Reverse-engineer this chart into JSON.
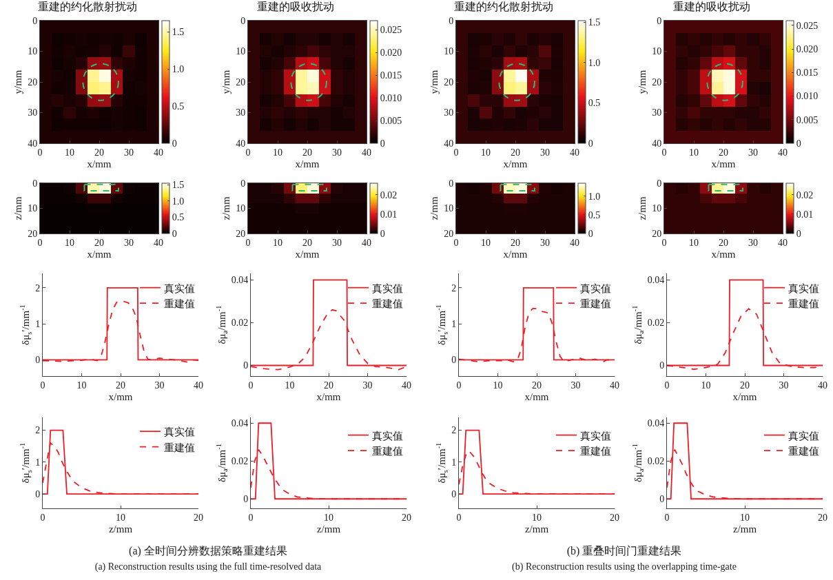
{
  "chart_data": [
    {
      "type": "heatmap",
      "title": "重建的约化散射扰动",
      "xlabel": "x/mm",
      "ylabel": "y/mm",
      "x": [
        2,
        6,
        10,
        14,
        18,
        22,
        26,
        30,
        34,
        38
      ],
      "y": [
        2,
        6,
        10,
        14,
        18,
        22,
        26,
        30,
        34,
        38
      ],
      "xlim": [
        0,
        40
      ],
      "ylim": [
        40,
        0
      ],
      "xticks": [
        0,
        10,
        20,
        30,
        40
      ],
      "yticks": [
        0,
        10,
        20,
        30,
        40
      ],
      "clim": [
        0,
        1.65
      ],
      "cticks": [
        0,
        0.5,
        {
          "value": 1,
          "label": "1.0"
        },
        1.5
      ],
      "cells": [
        [
          0.08,
          0.08,
          0.08,
          0.08,
          0.08,
          0.08,
          0.08,
          0.08,
          0.08,
          0.08
        ],
        [
          0.08,
          0.04,
          0.05,
          0.06,
          0.05,
          0.06,
          0.05,
          0.07,
          0.04,
          0.08
        ],
        [
          0.08,
          0.05,
          0.07,
          0.05,
          0.06,
          0.1,
          0.05,
          0.15,
          0.05,
          0.08
        ],
        [
          0.08,
          0.04,
          0.06,
          0.1,
          0.4,
          0.42,
          0.12,
          0.08,
          0.05,
          0.08
        ],
        [
          0.08,
          0.06,
          0.05,
          0.35,
          1.45,
          1.6,
          0.45,
          0.06,
          0.05,
          0.08
        ],
        [
          0.08,
          0.05,
          0.06,
          0.35,
          1.4,
          1.45,
          0.45,
          0.05,
          0.06,
          0.08
        ],
        [
          0.08,
          0.1,
          0.07,
          0.1,
          0.4,
          0.42,
          0.1,
          0.05,
          0.05,
          0.08
        ],
        [
          0.08,
          0.05,
          0.12,
          0.06,
          0.08,
          0.05,
          0.06,
          0.05,
          0.04,
          0.08
        ],
        [
          0.08,
          0.04,
          0.05,
          0.05,
          0.05,
          0.04,
          0.06,
          0.05,
          0.04,
          0.08
        ],
        [
          0.08,
          0.08,
          0.08,
          0.08,
          0.08,
          0.08,
          0.08,
          0.08,
          0.08,
          0.08
        ]
      ]
    },
    {
      "type": "heatmap",
      "title": "重建的吸收扰动",
      "xlabel": "x/mm",
      "ylabel": "y/mm",
      "x": [
        2,
        6,
        10,
        14,
        18,
        22,
        26,
        30,
        34,
        38
      ],
      "y": [
        2,
        6,
        10,
        14,
        18,
        22,
        26,
        30,
        34,
        38
      ],
      "xlim": [
        0,
        40
      ],
      "ylim": [
        40,
        0
      ],
      "xticks": [
        0,
        10,
        20,
        30,
        40
      ],
      "yticks": [
        0,
        10,
        20,
        30,
        40
      ],
      "clim": [
        0,
        0.027
      ],
      "cticks": [
        0,
        0.005,
        {
          "value": 0.01,
          "label": "0.010"
        },
        0.015,
        {
          "value": 0.02,
          "label": "0.020"
        },
        0.025
      ],
      "cells": [
        [
          0.002,
          0.002,
          0.002,
          0.002,
          0.002,
          0.002,
          0.002,
          0.002,
          0.002,
          0.002
        ],
        [
          0.002,
          0.001,
          0.0015,
          0.001,
          0.0015,
          0.0015,
          0.001,
          0.0015,
          0.001,
          0.002
        ],
        [
          0.002,
          0.0015,
          0.001,
          0.0015,
          0.002,
          0.003,
          0.002,
          0.0015,
          0.0015,
          0.002
        ],
        [
          0.002,
          0.001,
          0.0015,
          0.003,
          0.008,
          0.009,
          0.003,
          0.0015,
          0.001,
          0.002
        ],
        [
          0.002,
          0.0015,
          0.002,
          0.008,
          0.024,
          0.026,
          0.009,
          0.002,
          0.0015,
          0.002
        ],
        [
          0.002,
          0.0015,
          0.002,
          0.008,
          0.024,
          0.025,
          0.009,
          0.002,
          0.0015,
          0.002
        ],
        [
          0.002,
          0.001,
          0.0015,
          0.003,
          0.008,
          0.009,
          0.003,
          0.0015,
          0.001,
          0.002
        ],
        [
          0.002,
          0.0015,
          0.002,
          0.0015,
          0.002,
          0.0015,
          0.0015,
          0.001,
          0.0015,
          0.002
        ],
        [
          0.002,
          0.001,
          0.0015,
          0.001,
          0.0015,
          0.001,
          0.0015,
          0.001,
          0.001,
          0.002
        ],
        [
          0.002,
          0.002,
          0.002,
          0.002,
          0.002,
          0.002,
          0.002,
          0.002,
          0.002,
          0.002
        ]
      ]
    },
    {
      "type": "heatmap",
      "title": "重建的约化散射扰动",
      "xlabel": "x/mm",
      "ylabel": "y/mm",
      "x": [
        2,
        6,
        10,
        14,
        18,
        22,
        26,
        30,
        34,
        38
      ],
      "y": [
        2,
        6,
        10,
        14,
        18,
        22,
        26,
        30,
        34,
        38
      ],
      "xlim": [
        0,
        40
      ],
      "ylim": [
        40,
        0
      ],
      "xticks": [
        0,
        10,
        20,
        30,
        40
      ],
      "yticks": [
        0,
        10,
        20,
        30,
        40
      ],
      "clim": [
        0,
        1.52
      ],
      "cticks": [
        0,
        0.5,
        {
          "value": 1,
          "label": "1.0"
        },
        1.5
      ],
      "cells": [
        [
          0.12,
          0.12,
          0.12,
          0.12,
          0.12,
          0.12,
          0.12,
          0.12,
          0.12,
          0.12
        ],
        [
          0.12,
          0.06,
          0.07,
          0.1,
          0.08,
          0.12,
          0.07,
          0.09,
          0.06,
          0.12
        ],
        [
          0.12,
          0.07,
          0.1,
          0.06,
          0.12,
          0.08,
          0.1,
          0.2,
          0.07,
          0.12
        ],
        [
          0.12,
          0.06,
          0.08,
          0.1,
          0.4,
          0.42,
          0.12,
          0.14,
          0.06,
          0.12
        ],
        [
          0.12,
          0.08,
          0.06,
          0.35,
          1.35,
          1.5,
          0.42,
          0.08,
          0.07,
          0.12
        ],
        [
          0.12,
          0.07,
          0.08,
          0.33,
          1.3,
          1.35,
          0.4,
          0.1,
          0.08,
          0.12
        ],
        [
          0.12,
          0.18,
          0.1,
          0.1,
          0.38,
          0.4,
          0.1,
          0.07,
          0.06,
          0.12
        ],
        [
          0.12,
          0.07,
          0.2,
          0.08,
          0.12,
          0.06,
          0.08,
          0.1,
          0.06,
          0.12
        ],
        [
          0.12,
          0.06,
          0.07,
          0.08,
          0.06,
          0.07,
          0.1,
          0.06,
          0.06,
          0.12
        ],
        [
          0.12,
          0.12,
          0.12,
          0.12,
          0.12,
          0.12,
          0.12,
          0.12,
          0.12,
          0.12
        ]
      ]
    },
    {
      "type": "heatmap",
      "title": "重建的吸收扰动",
      "xlabel": "x/mm",
      "ylabel": "y/mm",
      "x": [
        2,
        6,
        10,
        14,
        18,
        22,
        26,
        30,
        34,
        38
      ],
      "y": [
        2,
        6,
        10,
        14,
        18,
        22,
        26,
        30,
        34,
        38
      ],
      "xlim": [
        0,
        40
      ],
      "ylim": [
        40,
        0
      ],
      "xticks": [
        0,
        10,
        20,
        30,
        40
      ],
      "yticks": [
        0,
        10,
        20,
        30,
        40
      ],
      "clim": [
        0,
        0.026
      ],
      "cticks": [
        0,
        0.005,
        {
          "value": 0.01,
          "label": "0.010"
        },
        0.015,
        {
          "value": 0.02,
          "label": "0.020"
        },
        0.025
      ],
      "cells": [
        [
          0.003,
          0.003,
          0.003,
          0.003,
          0.003,
          0.003,
          0.003,
          0.003,
          0.003,
          0.003
        ],
        [
          0.003,
          0.0015,
          0.002,
          0.0015,
          0.002,
          0.0015,
          0.002,
          0.0015,
          0.002,
          0.003
        ],
        [
          0.003,
          0.002,
          0.0015,
          0.002,
          0.003,
          0.004,
          0.002,
          0.002,
          0.0015,
          0.003
        ],
        [
          0.003,
          0.0015,
          0.002,
          0.004,
          0.008,
          0.009,
          0.004,
          0.002,
          0.0015,
          0.003
        ],
        [
          0.003,
          0.002,
          0.003,
          0.008,
          0.024,
          0.025,
          0.009,
          0.002,
          0.002,
          0.003
        ],
        [
          0.003,
          0.002,
          0.003,
          0.008,
          0.023,
          0.025,
          0.009,
          0.0015,
          0.001,
          0.003
        ],
        [
          0.003,
          0.0015,
          0.002,
          0.004,
          0.008,
          0.009,
          0.004,
          0.002,
          0.0015,
          0.003
        ],
        [
          0.003,
          0.002,
          0.003,
          0.002,
          0.002,
          0.002,
          0.0015,
          0.0015,
          0.002,
          0.003
        ],
        [
          0.003,
          0.0015,
          0.002,
          0.0015,
          0.002,
          0.0015,
          0.002,
          0.0015,
          0.0015,
          0.003
        ],
        [
          0.003,
          0.003,
          0.003,
          0.003,
          0.003,
          0.003,
          0.003,
          0.003,
          0.003,
          0.003
        ]
      ]
    },
    {
      "type": "heatmap",
      "xlabel": "x/mm",
      "ylabel": "z/mm",
      "x": [
        2,
        6,
        10,
        14,
        18,
        22,
        26,
        30,
        34,
        38
      ],
      "y": [
        2,
        6,
        10,
        14,
        18
      ],
      "xlim": [
        0,
        40
      ],
      "ylim": [
        20,
        0
      ],
      "xticks": [
        0,
        10,
        20,
        30,
        40
      ],
      "yticks": [
        0,
        10,
        20
      ],
      "clim": [
        0,
        1.55
      ],
      "cticks": [
        0,
        0.5,
        {
          "value": 1,
          "label": "1.0"
        },
        1.5
      ],
      "cells": [
        [
          0.03,
          0.03,
          0.04,
          0.2,
          1.4,
          1.5,
          0.25,
          0.04,
          0.03,
          0.03
        ],
        [
          0.03,
          0.03,
          0.03,
          0.05,
          0.15,
          0.15,
          0.05,
          0.03,
          0.03,
          0.03
        ],
        [
          0.02,
          0.02,
          0.02,
          0.02,
          0.03,
          0.03,
          0.02,
          0.02,
          0.02,
          0.02
        ],
        [
          0.02,
          0.02,
          0.02,
          0.02,
          0.02,
          0.02,
          0.02,
          0.02,
          0.02,
          0.02
        ],
        [
          0.02,
          0.02,
          0.02,
          0.02,
          0.02,
          0.02,
          0.02,
          0.02,
          0.02,
          0.02
        ]
      ]
    },
    {
      "type": "heatmap",
      "xlabel": "x/mm",
      "ylabel": "z/mm",
      "x": [
        2,
        6,
        10,
        14,
        18,
        22,
        26,
        30,
        34,
        38
      ],
      "y": [
        2,
        6,
        10,
        14,
        18
      ],
      "xlim": [
        0,
        40
      ],
      "ylim": [
        20,
        0
      ],
      "xticks": [
        0,
        10,
        20,
        30,
        40
      ],
      "yticks": [
        0,
        10,
        20
      ],
      "clim": [
        0,
        0.026
      ],
      "cticks": [
        0,
        0.01,
        0.02
      ],
      "cells": [
        [
          0.001,
          0.001,
          0.0015,
          0.005,
          0.022,
          0.025,
          0.006,
          0.0015,
          0.001,
          0.001
        ],
        [
          0.001,
          0.001,
          0.001,
          0.002,
          0.004,
          0.004,
          0.002,
          0.001,
          0.001,
          0.001
        ],
        [
          0.0008,
          0.0008,
          0.0008,
          0.0008,
          0.001,
          0.001,
          0.0008,
          0.0008,
          0.0008,
          0.0008
        ],
        [
          0.0008,
          0.0008,
          0.0008,
          0.0008,
          0.0008,
          0.0008,
          0.0008,
          0.0008,
          0.0008,
          0.0008
        ],
        [
          0.0008,
          0.0008,
          0.0008,
          0.0008,
          0.0008,
          0.0008,
          0.0008,
          0.0008,
          0.0008,
          0.0008
        ]
      ]
    },
    {
      "type": "heatmap",
      "xlabel": "x/mm",
      "ylabel": "z/mm",
      "x": [
        2,
        6,
        10,
        14,
        18,
        22,
        26,
        30,
        34,
        38
      ],
      "y": [
        2,
        6,
        10,
        14,
        18
      ],
      "xlim": [
        0,
        40
      ],
      "ylim": [
        20,
        0
      ],
      "xticks": [
        0,
        10,
        20,
        30,
        40
      ],
      "yticks": [
        0,
        10,
        20
      ],
      "clim": [
        0,
        1.35
      ],
      "cticks": [
        0,
        0.5,
        {
          "value": 1,
          "label": "1.0"
        }
      ],
      "cells": [
        [
          0.06,
          0.05,
          0.07,
          0.25,
          1.25,
          1.3,
          0.3,
          0.07,
          0.05,
          0.06
        ],
        [
          0.06,
          0.06,
          0.06,
          0.08,
          0.2,
          0.2,
          0.08,
          0.06,
          0.06,
          0.06
        ],
        [
          0.06,
          0.06,
          0.06,
          0.06,
          0.07,
          0.07,
          0.06,
          0.06,
          0.06,
          0.06
        ],
        [
          0.06,
          0.06,
          0.06,
          0.06,
          0.06,
          0.06,
          0.06,
          0.06,
          0.06,
          0.06
        ],
        [
          0.06,
          0.06,
          0.06,
          0.06,
          0.06,
          0.06,
          0.06,
          0.06,
          0.06,
          0.06
        ]
      ]
    },
    {
      "type": "heatmap",
      "xlabel": "x/mm",
      "ylabel": "z/mm",
      "x": [
        2,
        6,
        10,
        14,
        18,
        22,
        26,
        30,
        34,
        38
      ],
      "y": [
        2,
        6,
        10,
        14,
        18
      ],
      "xlim": [
        0,
        40
      ],
      "ylim": [
        20,
        0
      ],
      "xticks": [
        0,
        10,
        20,
        30,
        40
      ],
      "yticks": [
        0,
        10,
        20
      ],
      "clim": [
        0,
        0.026
      ],
      "cticks": [
        0,
        0.01,
        0.02
      ],
      "cells": [
        [
          0.002,
          0.0015,
          0.002,
          0.006,
          0.023,
          0.025,
          0.006,
          0.002,
          0.0015,
          0.002
        ],
        [
          0.002,
          0.002,
          0.002,
          0.003,
          0.004,
          0.004,
          0.003,
          0.002,
          0.002,
          0.002
        ],
        [
          0.002,
          0.002,
          0.002,
          0.002,
          0.002,
          0.002,
          0.002,
          0.002,
          0.002,
          0.002
        ],
        [
          0.002,
          0.002,
          0.002,
          0.002,
          0.002,
          0.002,
          0.002,
          0.002,
          0.002,
          0.002
        ],
        [
          0.002,
          0.002,
          0.002,
          0.002,
          0.002,
          0.002,
          0.002,
          0.002,
          0.002,
          0.002
        ]
      ]
    },
    {
      "type": "line",
      "xlabel": "x/mm",
      "ylabel": "δμ$_{s}$′/mm$^{-1}$",
      "xlim": [
        0,
        40
      ],
      "ylim": [
        -0.45,
        2.4
      ],
      "xticks": [
        0,
        10,
        20,
        30,
        40
      ],
      "yticks": [
        0,
        1,
        2
      ],
      "legend": "top right",
      "series": [
        {
          "name": "真实值",
          "color": "#ee1c25",
          "line_style": "solid",
          "x": [
            0,
            16.5,
            16.6,
            24.4,
            24.5,
            40
          ],
          "values": [
            0,
            0,
            2,
            2,
            0,
            0
          ]
        },
        {
          "name": "重建值",
          "color": "#ee1c25",
          "line_style": "dashed",
          "x": [
            0,
            5,
            10,
            12,
            14,
            15,
            16,
            17,
            18,
            19,
            20,
            21,
            22,
            23,
            24,
            25,
            26,
            27,
            28,
            30,
            32,
            35,
            37,
            38,
            40
          ],
          "values": [
            -0.02,
            -0.04,
            -0.01,
            0.02,
            -0.02,
            0.1,
            0.5,
            1,
            1.4,
            1.6,
            1.63,
            1.62,
            1.58,
            1.45,
            1.2,
            0.7,
            0.25,
            0.02,
            0,
            0.05,
            0.02,
            -0.01,
            -0.06,
            0,
            -0.01
          ]
        }
      ]
    },
    {
      "type": "line",
      "xlabel": "x/mm",
      "ylabel": "δμ$_{a}$/mm$^{-1}$",
      "xlim": [
        0,
        40
      ],
      "ylim": [
        -0.005,
        0.043
      ],
      "xticks": [
        0,
        10,
        20,
        30,
        40
      ],
      "yticks": [
        0,
        0.02,
        0.04
      ],
      "legend": "top right",
      "series": [
        {
          "name": "真实值",
          "color": "#ee1c25",
          "line_style": "solid",
          "x": [
            0,
            16,
            16.1,
            24.7,
            24.8,
            40
          ],
          "values": [
            0,
            0,
            0.04,
            0.04,
            0,
            0
          ]
        },
        {
          "name": "重建值",
          "color": "#ee1c25",
          "line_style": "dashed",
          "x": [
            0,
            3,
            7,
            10,
            12,
            14,
            16,
            18,
            20,
            21,
            22,
            24,
            26,
            28,
            30,
            32,
            35,
            38,
            40
          ],
          "values": [
            -0.0005,
            -0.0015,
            -0.002,
            -0.0008,
            0.0005,
            0.004,
            0.011,
            0.019,
            0.025,
            0.026,
            0.0255,
            0.021,
            0.012,
            0.005,
            0.001,
            -0.0005,
            -0.001,
            -0.002,
            -0.0005
          ]
        }
      ]
    },
    {
      "type": "line",
      "xlabel": "x/mm",
      "ylabel": "δμ$_{s}$′/mm$^{-1}$",
      "xlim": [
        0,
        40
      ],
      "ylim": [
        -0.45,
        2.4
      ],
      "xticks": [
        0,
        10,
        20,
        30,
        40
      ],
      "yticks": [
        0,
        1,
        2
      ],
      "legend": "top right",
      "series": [
        {
          "name": "真实值",
          "color": "#ee1c25",
          "line_style": "solid",
          "x": [
            0,
            16.5,
            16.6,
            24.3,
            24.4,
            40
          ],
          "values": [
            0,
            0,
            2,
            2,
            0,
            0
          ]
        },
        {
          "name": "重建值",
          "color": "#ee1c25",
          "line_style": "dashed",
          "x": [
            0,
            3,
            5,
            8,
            11,
            12,
            14,
            15,
            16,
            17,
            18,
            19,
            20,
            21,
            22,
            23,
            24,
            25,
            26,
            27,
            28,
            30,
            31,
            33,
            35,
            37,
            38,
            40
          ],
          "values": [
            0.02,
            -0.02,
            -0.05,
            -0.02,
            -0.02,
            0.01,
            -0.05,
            -0.02,
            0.3,
            0.9,
            1.3,
            1.43,
            1.42,
            1.35,
            1.33,
            1.3,
            1,
            0.5,
            0.1,
            -0.05,
            -0.02,
            0.03,
            0.05,
            -0.02,
            0.02,
            -0.06,
            0,
            -0.02
          ]
        }
      ]
    },
    {
      "type": "line",
      "xlabel": "x/mm",
      "ylabel": "δμ$_{a}$/mm$^{-1}$",
      "xlim": [
        0,
        40
      ],
      "ylim": [
        -0.005,
        0.043
      ],
      "xticks": [
        0,
        10,
        20,
        30,
        40
      ],
      "yticks": [
        0,
        0.02,
        0.04
      ],
      "legend": "top right",
      "series": [
        {
          "name": "真实值",
          "color": "#ee1c25",
          "line_style": "solid",
          "x": [
            0,
            16,
            16.1,
            24.7,
            24.8,
            40
          ],
          "values": [
            0,
            0,
            0.04,
            0.04,
            0,
            0
          ]
        },
        {
          "name": "重建值",
          "color": "#ee1c25",
          "line_style": "dashed",
          "x": [
            0,
            4,
            7,
            10,
            13,
            15,
            17,
            19,
            21,
            23,
            25,
            27,
            29,
            32,
            35,
            38,
            40
          ],
          "values": [
            0,
            -0.001,
            -0.0018,
            -0.001,
            0.0005,
            0.006,
            0.015,
            0.023,
            0.0265,
            0.024,
            0.015,
            0.006,
            0.001,
            -0.0005,
            -0.001,
            -0.001,
            0
          ]
        }
      ]
    },
    {
      "type": "line",
      "xlabel": "z/mm",
      "ylabel": "δμ$_{s}$′/mm$^{-1}$",
      "xlim": [
        0,
        20
      ],
      "ylim": [
        -0.45,
        2.4
      ],
      "xticks": [
        0,
        10,
        20
      ],
      "yticks": [
        0,
        1,
        2
      ],
      "legend": "top right",
      "series": [
        {
          "name": "真实值",
          "color": "#ee1c25",
          "line_style": "solid",
          "x": [
            0,
            0.6,
            1,
            2.6,
            3.1,
            20
          ],
          "values": [
            0,
            0,
            2,
            2,
            0,
            0
          ]
        },
        {
          "name": "重建值",
          "color": "#ee1c25",
          "line_style": "dashed",
          "x": [
            0,
            0.5,
            1,
            1.5,
            2,
            2.5,
            3,
            3.5,
            4,
            5,
            6,
            7,
            8,
            10,
            20
          ],
          "values": [
            0.35,
            1,
            1.6,
            1.5,
            1.3,
            1,
            0.75,
            0.55,
            0.38,
            0.2,
            0.1,
            0.05,
            0.02,
            0,
            0
          ]
        }
      ]
    },
    {
      "type": "line",
      "xlabel": "z/mm",
      "ylabel": "δμ$_{a}$/mm$^{-1}$",
      "xlim": [
        0,
        20
      ],
      "ylim": [
        -0.005,
        0.043
      ],
      "xticks": [
        0,
        10,
        20
      ],
      "yticks": [
        0,
        0.02,
        0.04
      ],
      "legend": "right",
      "series": [
        {
          "name": "真实值",
          "color": "#ee1c25",
          "line_style": "solid",
          "x": [
            0,
            0.6,
            1,
            2.6,
            3.1,
            20
          ],
          "values": [
            0,
            0,
            0.04,
            0.04,
            0,
            0
          ]
        },
        {
          "name": "重建值",
          "color": "#ee1c25",
          "line_style": "dashed",
          "x": [
            0,
            0.5,
            1,
            1.5,
            2,
            2.5,
            3,
            3.5,
            4,
            5,
            6,
            8,
            10,
            20
          ],
          "values": [
            0.006,
            0.02,
            0.026,
            0.023,
            0.019,
            0.015,
            0.011,
            0.008,
            0.005,
            0.0025,
            0.001,
            0.0002,
            0,
            0
          ]
        }
      ]
    },
    {
      "type": "line",
      "xlabel": "z/mm",
      "ylabel": "δμ$_{s}$′/mm$^{-1}$",
      "xlim": [
        0,
        20
      ],
      "ylim": [
        -0.45,
        2.4
      ],
      "xticks": [
        0,
        10,
        20
      ],
      "yticks": [
        0,
        1,
        2
      ],
      "legend": "right",
      "series": [
        {
          "name": "真实值",
          "color": "#ee1c25",
          "line_style": "solid",
          "x": [
            0,
            0.5,
            0.9,
            2.6,
            3.1,
            20
          ],
          "values": [
            0,
            0,
            2,
            2,
            0,
            0
          ]
        },
        {
          "name": "重建值",
          "color": "#ee1c25",
          "line_style": "dashed",
          "x": [
            0,
            0.5,
            1,
            1.3,
            2,
            2.5,
            3,
            3.5,
            4,
            5,
            6,
            7,
            9,
            10,
            20
          ],
          "values": [
            0.3,
            0.9,
            1.3,
            1.35,
            1.15,
            0.9,
            0.65,
            0.45,
            0.32,
            0.17,
            0.09,
            0.04,
            0.01,
            0,
            0
          ]
        }
      ]
    },
    {
      "type": "line",
      "xlabel": "z/mm",
      "ylabel": "δμ$_{a}$/mm$^{-1}$",
      "xlim": [
        0,
        20
      ],
      "ylim": [
        -0.005,
        0.043
      ],
      "xticks": [
        0,
        10,
        20
      ],
      "yticks": [
        0,
        0.02,
        0.04
      ],
      "legend": "right",
      "series": [
        {
          "name": "真实值",
          "color": "#ee1c25",
          "line_style": "solid",
          "x": [
            0,
            0.5,
            0.9,
            2.6,
            3.1,
            20
          ],
          "values": [
            0,
            0,
            0.04,
            0.04,
            0,
            0
          ]
        },
        {
          "name": "重建值",
          "color": "#ee1c25",
          "line_style": "dashed",
          "x": [
            0,
            0.5,
            1,
            1.5,
            2,
            2.5,
            3,
            3.5,
            4,
            5,
            6,
            8,
            10,
            20
          ],
          "values": [
            0.006,
            0.02,
            0.026,
            0.022,
            0.018,
            0.013,
            0.009,
            0.006,
            0.004,
            0.002,
            0.001,
            0.0002,
            0,
            0
          ]
        }
      ]
    },
    {
      "type": "other",
      "annotations": [
        "(a) 全时间分辨数据策略重建结果",
        "(a) Reconstruction results using the full time-resolved data"
      ]
    },
    {
      "type": "other",
      "annotations": [
        "(b) 重叠时间门重建结果",
        "(b) Reconstruction results using the overlapping time-gate"
      ]
    }
  ]
}
